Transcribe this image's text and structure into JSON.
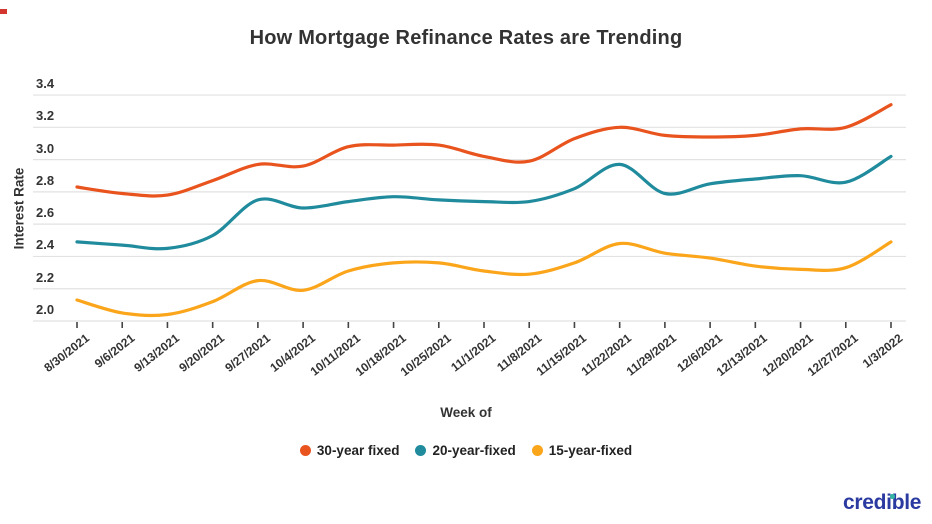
{
  "page": {
    "background": "#ffffff",
    "corner_mark_color": "#d3352f"
  },
  "chart": {
    "title": "How Mortgage Refinance Rates are Trending",
    "y_axis_label": "Interest Rate",
    "x_axis_label": "Week of",
    "title_color": "#333333",
    "text_color": "#333333",
    "grid_color": "#e2e2e2",
    "tick_mark_color": "#444444"
  },
  "footer": {
    "logo_text": "credible",
    "logo_color": "#2b3aa0",
    "logo_dot_color": "#35b5a4"
  },
  "chart_data": {
    "type": "line",
    "x": [
      "8/30/2021",
      "9/6/2021",
      "9/13/2021",
      "9/20/2021",
      "9/27/2021",
      "10/4/2021",
      "10/11/2021",
      "10/18/2021",
      "10/25/2021",
      "11/1/2021",
      "11/8/2021",
      "11/15/2021",
      "11/22/2021",
      "11/29/2021",
      "12/6/2021",
      "12/13/2021",
      "12/20/2021",
      "12/27/2021",
      "1/3/2022"
    ],
    "series": [
      {
        "name": "30-year fixed",
        "color": "#e9531d",
        "values": [
          2.83,
          2.79,
          2.78,
          2.87,
          2.97,
          2.96,
          3.08,
          3.09,
          3.09,
          3.02,
          2.99,
          3.13,
          3.2,
          3.15,
          3.14,
          3.15,
          3.19,
          3.2,
          3.34
        ]
      },
      {
        "name": "20-year-fixed",
        "color": "#1f8b9d",
        "values": [
          2.49,
          2.47,
          2.45,
          2.53,
          2.75,
          2.7,
          2.74,
          2.77,
          2.75,
          2.74,
          2.74,
          2.82,
          2.97,
          2.79,
          2.85,
          2.88,
          2.9,
          2.86,
          3.02
        ]
      },
      {
        "name": "15-year-fixed",
        "color": "#fba51b",
        "values": [
          2.13,
          2.05,
          2.04,
          2.12,
          2.25,
          2.19,
          2.31,
          2.36,
          2.36,
          2.31,
          2.29,
          2.36,
          2.48,
          2.42,
          2.39,
          2.34,
          2.32,
          2.33,
          2.49
        ]
      }
    ],
    "xlabel": "Week of",
    "ylabel": "Interest Rate",
    "ylim": [
      2.0,
      3.4
    ],
    "y_ticks": [
      2.0,
      2.2,
      2.4,
      2.6,
      2.8,
      3.0,
      3.2,
      3.4
    ],
    "grid": "horizontal",
    "legend_position": "bottom"
  }
}
